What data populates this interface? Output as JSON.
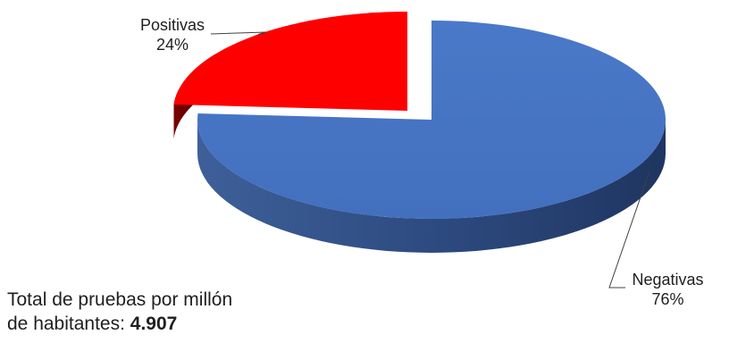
{
  "chart_data": {
    "type": "pie",
    "title": "",
    "categories": [
      "Negativas",
      "Positivas"
    ],
    "values": [
      76,
      24
    ],
    "labels": [
      "76%",
      "24%"
    ],
    "colors": [
      "#4472C4",
      "#FF0000"
    ],
    "legend": "none",
    "exploded": "Positivas"
  },
  "note": {
    "line1": "Total de pruebas por millón",
    "line2_prefix": "de habitantes: ",
    "line2_value": "4.907"
  }
}
